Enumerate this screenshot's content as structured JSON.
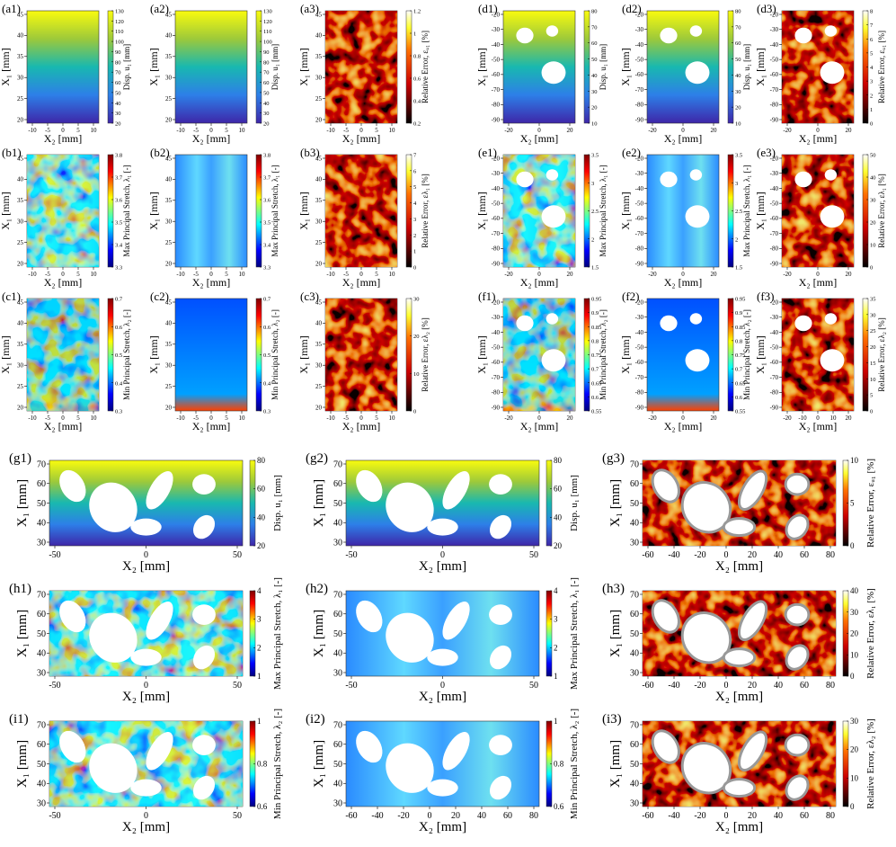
{
  "panels": [
    {
      "label": "(a1)",
      "xlabel": "X₂ [mm]",
      "ylabel": "X₁ [mm]",
      "cbar": "Disp. u₁ [mm]",
      "xticks": [
        -10,
        -5,
        0,
        5,
        10
      ],
      "yticks": [
        20,
        25,
        30,
        35,
        40,
        45
      ],
      "cticks": [
        20,
        30,
        40,
        50,
        60,
        70,
        80,
        90,
        100,
        110,
        120,
        130
      ]
    },
    {
      "label": "(a2)",
      "xlabel": "X₂ [mm]",
      "ylabel": "X₁ [mm]",
      "cbar": "Disp. u₁ [mm]",
      "xticks": [
        -10,
        -5,
        0,
        5,
        10
      ],
      "yticks": [
        20,
        25,
        30,
        35,
        40,
        45
      ],
      "cticks": [
        20,
        30,
        40,
        50,
        60,
        70,
        80,
        90,
        100,
        110,
        120,
        130
      ]
    },
    {
      "label": "(a3)",
      "xlabel": "X₂ [mm]",
      "ylabel": "X₁ [mm]",
      "cbar": "Relative Error, εᵤ₁ [%]",
      "xticks": [
        -10,
        -5,
        0,
        5,
        10
      ],
      "yticks": [
        20,
        25,
        30,
        35,
        40,
        45
      ],
      "cticks": [
        0.2,
        0.4,
        0.6,
        0.8,
        1,
        1.2
      ]
    },
    {
      "label": "(d1)",
      "xlabel": "X₂ [mm]",
      "ylabel": "X₁ [mm]",
      "cbar": "Disp. u₁ [mm]",
      "xticks": [
        -20,
        0,
        20
      ],
      "yticks": [
        -90,
        -80,
        -70,
        -60,
        -50,
        -40,
        -30,
        -20
      ],
      "cticks": [
        10,
        20,
        30,
        40,
        50,
        60,
        70,
        80
      ]
    },
    {
      "label": "(d2)",
      "xlabel": "X₂ [mm]",
      "ylabel": "X₁ [mm]",
      "cbar": "Disp. u₁ [mm]",
      "xticks": [
        -20,
        0,
        20
      ],
      "yticks": [
        -90,
        -80,
        -70,
        -60,
        -50,
        -40,
        -30,
        -20
      ],
      "cticks": [
        10,
        20,
        30,
        40,
        50,
        60,
        70,
        80
      ]
    },
    {
      "label": "(d3)",
      "xlabel": "X₂ [mm]",
      "ylabel": "X₁ [mm]",
      "cbar": "Relative Error, εᵤ₁ [%]",
      "xticks": [
        -20,
        0,
        20
      ],
      "yticks": [
        -90,
        -80,
        -70,
        -60,
        -50,
        -40,
        -30,
        -20
      ],
      "cticks": [
        0,
        1,
        2,
        3,
        4,
        5,
        6,
        7,
        8
      ]
    },
    {
      "label": "(b1)",
      "xlabel": "X₂ [mm]",
      "ylabel": "X₁ [mm]",
      "cbar": "Max Principal Stretch, λ₁ [-]",
      "xticks": [
        -10,
        -5,
        0,
        5,
        10
      ],
      "yticks": [
        20,
        25,
        30,
        35,
        40,
        45
      ],
      "cticks": [
        3.3,
        3.4,
        3.5,
        3.6,
        3.7,
        3.8
      ]
    },
    {
      "label": "(b2)",
      "xlabel": "X₂ [mm]",
      "ylabel": "X₁ [mm]",
      "cbar": "Max Principal Stretch, λ₁ [-]",
      "xticks": [
        -10,
        -5,
        0,
        5,
        10
      ],
      "yticks": [
        20,
        25,
        30,
        35,
        40,
        45
      ],
      "cticks": [
        3.3,
        3.4,
        3.5,
        3.6,
        3.7,
        3.8
      ]
    },
    {
      "label": "(b3)",
      "xlabel": "X₂ [mm]",
      "ylabel": "X₁ [mm]",
      "cbar": "Relative Error, ελ₁ [%]",
      "xticks": [
        -10,
        -5,
        0,
        5,
        10
      ],
      "yticks": [
        20,
        25,
        30,
        35,
        40,
        45
      ],
      "cticks": [
        0,
        1,
        2,
        3,
        4,
        5,
        6,
        7
      ]
    },
    {
      "label": "(e1)",
      "xlabel": "X₂ [mm]",
      "ylabel": "X₁ [mm]",
      "cbar": "Max Principal Stretch, λ₁ [-]",
      "xticks": [
        -20,
        0,
        20
      ],
      "yticks": [
        -90,
        -80,
        -70,
        -60,
        -50,
        -40,
        -30,
        -20
      ],
      "cticks": [
        1.5,
        2,
        2.5,
        3,
        3.5
      ]
    },
    {
      "label": "(e2)",
      "xlabel": "X₂ [mm]",
      "ylabel": "X₁ [mm]",
      "cbar": "Max Principal Stretch, λ₁ [-]",
      "xticks": [
        -20,
        0,
        20
      ],
      "yticks": [
        -90,
        -80,
        -70,
        -60,
        -50,
        -40,
        -30,
        -20
      ],
      "cticks": [
        1.5,
        2,
        2.5,
        3,
        3.5
      ]
    },
    {
      "label": "(e3)",
      "xlabel": "X₂ [mm]",
      "ylabel": "X₁ [mm]",
      "cbar": "Relative Error, ελ₁ [%]",
      "xticks": [
        -20,
        0,
        20
      ],
      "yticks": [
        -90,
        -80,
        -70,
        -60,
        -50,
        -40,
        -30,
        -20
      ],
      "cticks": [
        0,
        10,
        20,
        30,
        40,
        50
      ]
    },
    {
      "label": "(c1)",
      "xlabel": "X₂ [mm]",
      "ylabel": "X₁ [mm]",
      "cbar": "Min Principal Stretch, λ₂ [-]",
      "xticks": [
        -10,
        -5,
        0,
        5,
        10
      ],
      "yticks": [
        20,
        25,
        30,
        35,
        40,
        45
      ],
      "cticks": [
        0.3,
        0.4,
        0.5,
        0.6,
        0.7
      ]
    },
    {
      "label": "(c2)",
      "xlabel": "X₂ [mm]",
      "ylabel": "X₁ [mm]",
      "cbar": "Min Principal Stretch, λ₂ [-]",
      "xticks": [
        -10,
        -5,
        0,
        5,
        10
      ],
      "yticks": [
        20,
        25,
        30,
        35,
        40,
        45
      ],
      "cticks": [
        0.3,
        0.4,
        0.5,
        0.6,
        0.7
      ]
    },
    {
      "label": "(c3)",
      "xlabel": "X₂ [mm]",
      "ylabel": "X₁ [mm]",
      "cbar": "Relative Error, ελ₂ [%]",
      "xticks": [
        -10,
        -5,
        0,
        5,
        10
      ],
      "yticks": [
        20,
        25,
        30,
        35,
        40,
        45
      ],
      "cticks": [
        0,
        10,
        20,
        30
      ]
    },
    {
      "label": "(f1)",
      "xlabel": "X₂ [mm]",
      "ylabel": "X₁ [mm]",
      "cbar": "Min Principal Stretch, λ₂ [-]",
      "xticks": [
        -20,
        0,
        20
      ],
      "yticks": [
        -90,
        -80,
        -70,
        -60,
        -50,
        -40,
        -30,
        -20
      ],
      "cticks": [
        0.55,
        0.6,
        0.65,
        0.7,
        0.75,
        0.8,
        0.85,
        0.9,
        0.95
      ]
    },
    {
      "label": "(f2)",
      "xlabel": "X₂ [mm]",
      "ylabel": "X₁ [mm]",
      "cbar": "Min Principal Stretch, λ₂ [-]",
      "xticks": [
        -20,
        0,
        20
      ],
      "yticks": [
        -90,
        -80,
        -70,
        -60,
        -50,
        -40,
        -30,
        -20
      ],
      "cticks": [
        0.55,
        0.6,
        0.65,
        0.7,
        0.75,
        0.8,
        0.85,
        0.9,
        0.95
      ]
    },
    {
      "label": "(f3)",
      "xlabel": "X₂ [mm]",
      "ylabel": "X₁ [mm]",
      "cbar": "Relative Error, ελ₂ [%]",
      "xticks": [
        -20,
        -10,
        0,
        10,
        20
      ],
      "yticks": [
        -90,
        -80,
        -70,
        -60,
        -50,
        -40,
        -30,
        -20
      ],
      "cticks": [
        0,
        5,
        10,
        15,
        20,
        25,
        30,
        35
      ]
    },
    {
      "label": "(g1)",
      "xlabel": "X₂ [mm]",
      "ylabel": "X₁ [mm]",
      "cbar": "Disp. u₁ [mm]",
      "xticks": [
        -50,
        0,
        50
      ],
      "yticks": [
        30,
        40,
        50,
        60,
        70
      ],
      "cticks": [
        20,
        40,
        60,
        80
      ]
    },
    {
      "label": "(g2)",
      "xlabel": "X₂ [mm]",
      "ylabel": "X₁ [mm]",
      "cbar": "Disp. u₁ [mm]",
      "xticks": [
        -50,
        0,
        50
      ],
      "yticks": [
        30,
        40,
        50,
        60,
        70
      ],
      "cticks": [
        20,
        40,
        60,
        80
      ]
    },
    {
      "label": "(g3)",
      "xlabel": "X₂ [mm]",
      "ylabel": "X₁ [mm]",
      "cbar": "Relative Error, εᵤ₁ [%]",
      "xticks": [
        -60,
        -40,
        -20,
        0,
        20,
        40,
        60,
        80
      ],
      "yticks": [
        30,
        40,
        50,
        60,
        70
      ],
      "cticks": [
        0,
        5,
        10
      ]
    },
    {
      "label": "(h1)",
      "xlabel": "X₂ [mm]",
      "ylabel": "X₁ [mm]",
      "cbar": "Max Principal Stretch, λ₁ [-]",
      "xticks": [
        -50,
        0,
        50
      ],
      "yticks": [
        30,
        40,
        50,
        60,
        70
      ],
      "cticks": [
        1,
        2,
        3,
        4
      ]
    },
    {
      "label": "(h2)",
      "xlabel": "X₂ [mm]",
      "ylabel": "X₁ [mm]",
      "cbar": "Max Principal Stretch, λ₁ [-]",
      "xticks": [
        -50,
        0,
        50
      ],
      "yticks": [
        30,
        40,
        50,
        60,
        70
      ],
      "cticks": [
        1,
        2,
        3,
        4
      ]
    },
    {
      "label": "(h3)",
      "xlabel": "X₂ [mm]",
      "ylabel": "X₁ [mm]",
      "cbar": "Relative Error, ελ₁ [%]",
      "xticks": [
        -60,
        -40,
        -20,
        0,
        20,
        40,
        60,
        80
      ],
      "yticks": [
        30,
        40,
        50,
        60,
        70
      ],
      "cticks": [
        0,
        10,
        20,
        30,
        40
      ]
    },
    {
      "label": "(i1)",
      "xlabel": "X₂ [mm]",
      "ylabel": "X₁ [mm]",
      "cbar": "Min Principal Stretch, λ₂ [-]",
      "xticks": [
        -50,
        0,
        50
      ],
      "yticks": [
        30,
        40,
        50,
        60,
        70
      ],
      "cticks": [
        0.6,
        0.8,
        1
      ]
    },
    {
      "label": "(i2)",
      "xlabel": "X₂ [mm]",
      "ylabel": "X₁ [mm]",
      "cbar": "Min Principal Stretch, λ₂ [-]",
      "xticks": [
        -60,
        -40,
        -20,
        0,
        20,
        40,
        60,
        80
      ],
      "yticks": [
        30,
        40,
        50,
        60,
        70
      ],
      "cticks": [
        0.6,
        0.8,
        1
      ]
    },
    {
      "label": "(i3)",
      "xlabel": "X₂ [mm]",
      "ylabel": "X₁ [mm]",
      "cbar": "Relative Error, ελ₂ [%]",
      "xticks": [
        -60,
        -40,
        -20,
        0,
        20,
        40,
        60,
        80
      ],
      "yticks": [
        30,
        40,
        50,
        60,
        70
      ],
      "cticks": [
        0,
        10,
        20,
        30
      ]
    }
  ]
}
